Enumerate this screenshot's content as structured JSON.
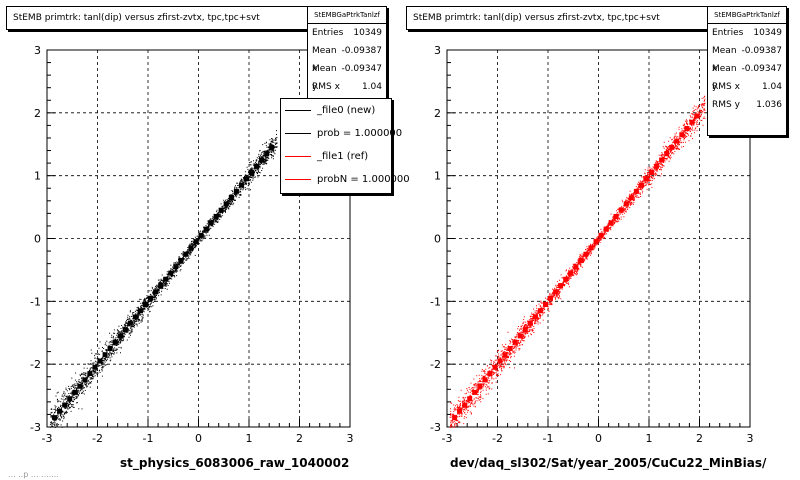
{
  "chart_data": [
    {
      "type": "scatter",
      "title": "StEMB primtrk: tanl(dip) versus zfirst-zvtx, tpc,tpc+svt",
      "xlabel": "st_physics_6083006_raw_1040002",
      "ylabel": "",
      "xlim": [
        -3,
        3
      ],
      "ylim": [
        -3,
        3
      ],
      "xticks": [
        -3,
        -2,
        -1,
        0,
        1,
        2,
        3
      ],
      "yticks": [
        -3,
        -2,
        -1,
        0,
        1,
        2,
        3
      ],
      "grid": true,
      "series": [
        {
          "name": "_file0 (new)",
          "color": "#000000",
          "slope": 1.0,
          "x_range": [
            -2.95,
            1.55
          ]
        }
      ],
      "stats": {
        "name": "StEMBGaPtrkTanlzf",
        "entries": "10349",
        "mean_x": "-0.09387",
        "mean_y": "-0.09347",
        "rms_x": "1.04"
      },
      "legend": {
        "placement": "top-right",
        "entries": [
          {
            "label": "_file0 (new)",
            "color": "#000000"
          },
          {
            "label": "prob = 1.000000",
            "color": "#000000"
          },
          {
            "label": "_file1 (ref)",
            "color": "#ff0000"
          },
          {
            "label": "probN = 1.000000",
            "color": "#ff0000"
          }
        ]
      }
    },
    {
      "type": "scatter",
      "title": "StEMB primtrk: tanl(dip) versus zfirst-zvtx, tpc,tpc+svt",
      "xlabel": "dev/daq_sl302/Sat/year_2005/CuCu22_MinBias/",
      "ylabel": "",
      "xlim": [
        -3,
        3
      ],
      "ylim": [
        -3,
        3
      ],
      "xticks": [
        -3,
        -2,
        -1,
        0,
        1,
        2,
        3
      ],
      "yticks": [
        -3,
        -2,
        -1,
        0,
        1,
        2,
        3
      ],
      "grid": true,
      "series": [
        {
          "name": "_file1 (ref)",
          "color": "#ff0000",
          "slope": 1.0,
          "x_range": [
            -2.95,
            2.1
          ]
        }
      ],
      "stats": {
        "name": "StEMBGaPtrkTanlzf",
        "entries": "10349",
        "mean_x": "-0.09387",
        "mean_y": "-0.09347",
        "rms_x": "1.04",
        "rms_y": "1.036"
      }
    }
  ],
  "labels": {
    "entries": "Entries",
    "mean_x": "Mean x",
    "mean_y": "Mean y",
    "rms_x": "RMS x",
    "rms_y": "RMS y"
  },
  "footer": "... ..p ... ......."
}
